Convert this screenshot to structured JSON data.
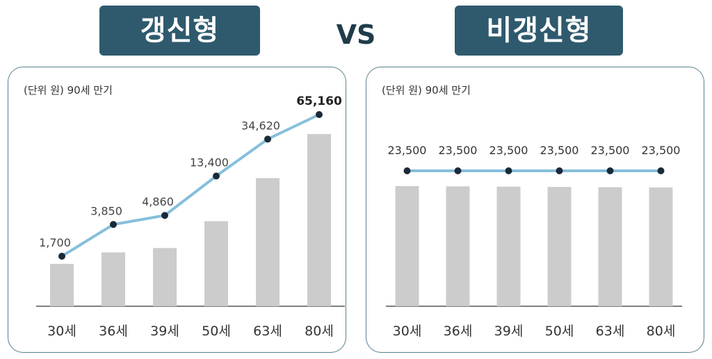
{
  "header": {
    "left_title": "갱신형",
    "vs": "VS",
    "right_title": "비갱신형"
  },
  "colors": {
    "badge": "#2f5a6e",
    "bar": "#cccccc",
    "line": "#86bfdb",
    "marker": "#1b2a38",
    "axis": "#333333"
  },
  "chart_data": [
    {
      "type": "bar",
      "title": "갱신형",
      "unit_note": "(단위 원) 90세 만기",
      "categories": [
        "30세",
        "36세",
        "39세",
        "50세",
        "63세",
        "80세"
      ],
      "values": [
        1700,
        3850,
        4860,
        13400,
        34620,
        65160
      ],
      "labels": [
        "1,700",
        "3,850",
        "4,860",
        "13,400",
        "34,620",
        "65,160"
      ],
      "overlay": "line-with-markers",
      "highlight_last_label": true,
      "grid": false,
      "legend": "none"
    },
    {
      "type": "bar",
      "title": "비갱신형",
      "unit_note": "(단위 원) 90세 만기",
      "categories": [
        "30세",
        "36세",
        "39세",
        "50세",
        "63세",
        "80세"
      ],
      "values": [
        23500,
        23500,
        23500,
        23500,
        23500,
        23500
      ],
      "labels": [
        "23,500",
        "23,500",
        "23,500",
        "23,500",
        "23,500",
        "23,500"
      ],
      "overlay": "line-with-markers",
      "highlight_last_label": false,
      "grid": false,
      "legend": "none"
    }
  ]
}
